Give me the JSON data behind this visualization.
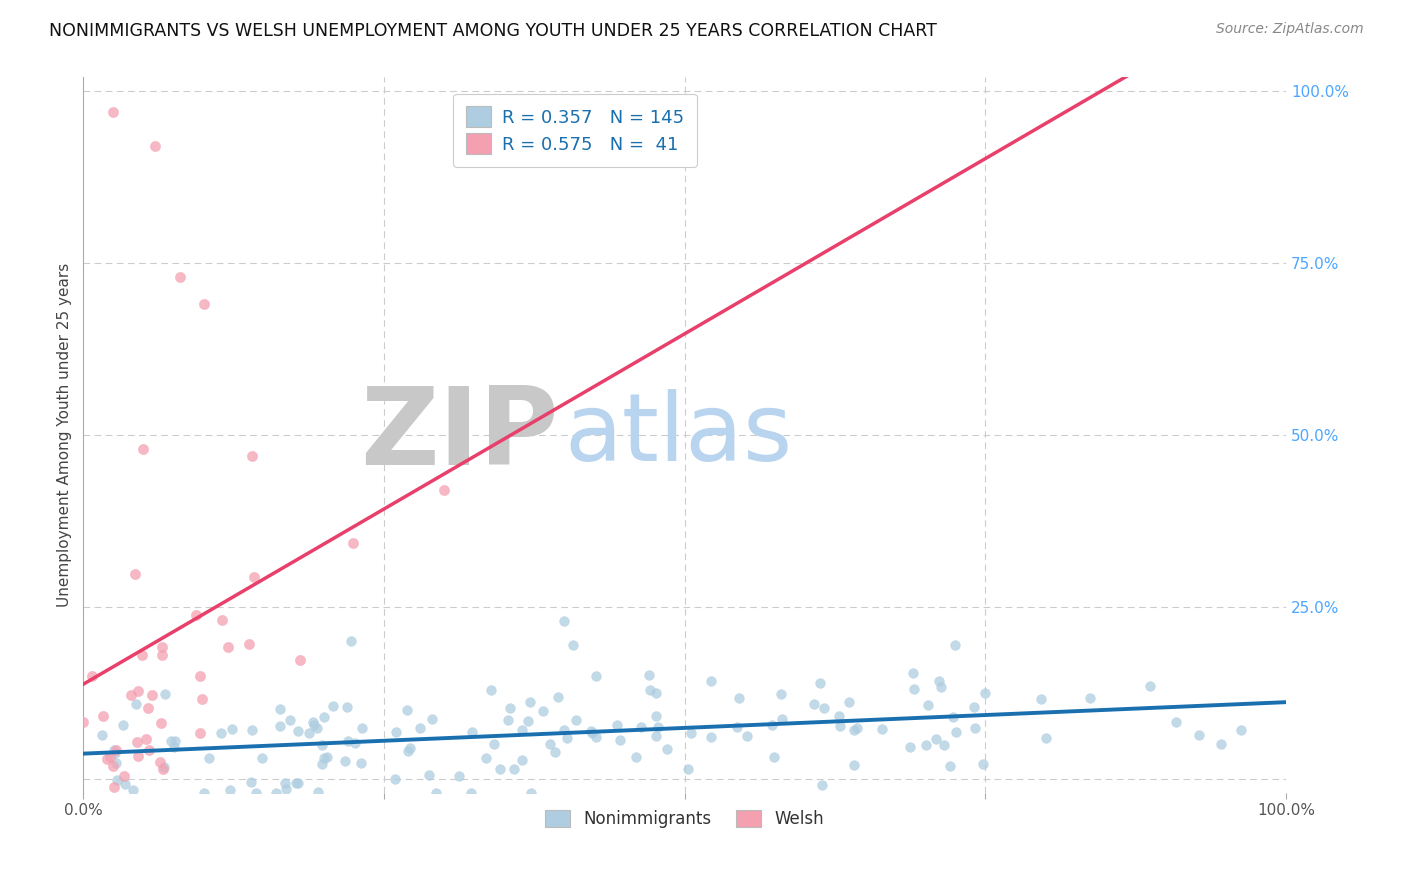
{
  "title": "NONIMMIGRANTS VS WELSH UNEMPLOYMENT AMONG YOUTH UNDER 25 YEARS CORRELATION CHART",
  "source": "Source: ZipAtlas.com",
  "ylabel": "Unemployment Among Youth under 25 years",
  "watermark_zip": "ZIP",
  "watermark_atlas": "atlas",
  "blue_label": "Nonimmigrants",
  "pink_label": "Welsh",
  "blue_R": 0.357,
  "blue_N": 145,
  "pink_R": 0.575,
  "pink_N": 41,
  "blue_color": "#aecde1",
  "pink_color": "#f4a0b0",
  "blue_line_color": "#1a6faf",
  "pink_line_color": "#e8406a",
  "xlim": [
    0.0,
    1.0
  ],
  "ylim": [
    -0.02,
    1.02
  ],
  "background_color": "#ffffff",
  "grid_color": "#cccccc",
  "title_fontsize": 12.5,
  "source_fontsize": 10,
  "axis_label_fontsize": 11,
  "legend_fontsize": 13,
  "watermark_zip_color": "#c8c8c8",
  "watermark_atlas_color": "#b8d4ee"
}
